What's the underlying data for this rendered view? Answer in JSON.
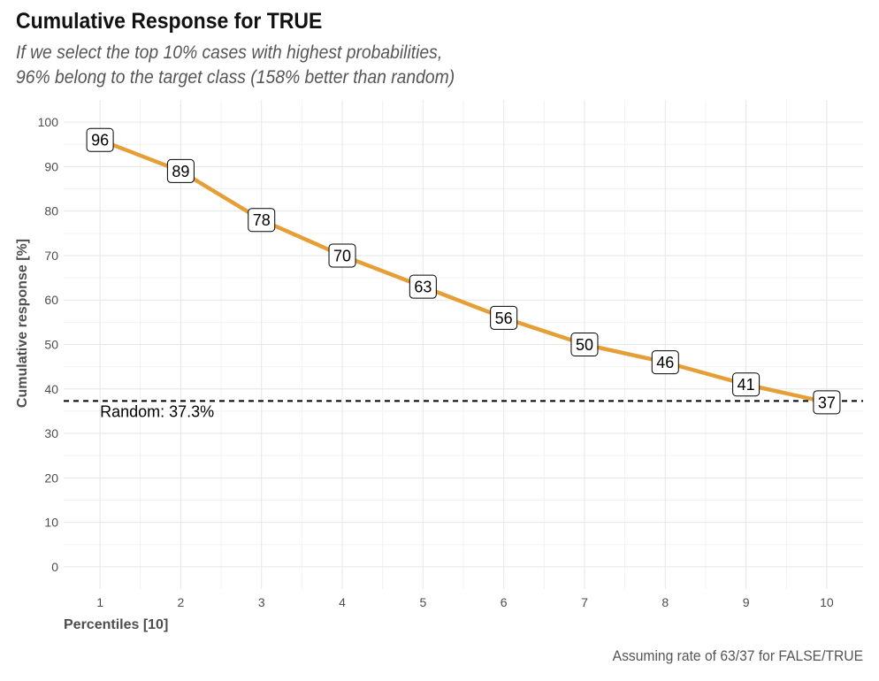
{
  "chart_data": {
    "type": "line",
    "title": "Cumulative Response for TRUE",
    "subtitle": [
      "If we select the top 10% cases with highest probabilities,",
      "96% belong to the target class (158% better than random)"
    ],
    "xlabel": "Percentiles [10]",
    "ylabel": "Cumulative response [%]",
    "caption": "Assuming rate of 63/37 for FALSE/TRUE",
    "x": [
      1,
      2,
      3,
      4,
      5,
      6,
      7,
      8,
      9,
      10
    ],
    "xlim": [
      0.55,
      10.45
    ],
    "ylim": [
      -5,
      105
    ],
    "xticks": [
      1,
      2,
      3,
      4,
      5,
      6,
      7,
      8,
      9,
      10
    ],
    "yticks": [
      0,
      10,
      20,
      30,
      40,
      50,
      60,
      70,
      80,
      90,
      100
    ],
    "series": [
      {
        "values": [
          96,
          89,
          78,
          70,
          63,
          56,
          50,
          46,
          41,
          37
        ],
        "labels": [
          "96",
          "89",
          "78",
          "70",
          "63",
          "56",
          "50",
          "46",
          "41",
          "37"
        ],
        "color": "#E69F36"
      }
    ],
    "baseline": {
      "value": 37.3,
      "label": "Random: 37.3%",
      "style": "dashed",
      "color": "#000000"
    },
    "grid": true
  }
}
